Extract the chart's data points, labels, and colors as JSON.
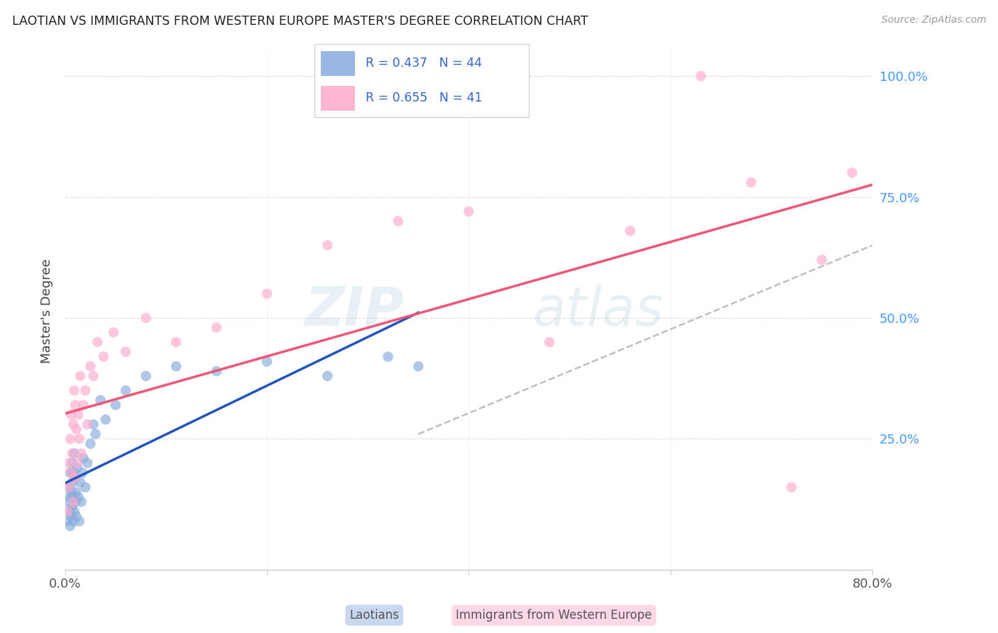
{
  "title": "LAOTIAN VS IMMIGRANTS FROM WESTERN EUROPE MASTER'S DEGREE CORRELATION CHART",
  "source": "Source: ZipAtlas.com",
  "ylabel": "Master's Degree",
  "xlim": [
    0.0,
    0.8
  ],
  "ylim": [
    -0.02,
    1.05
  ],
  "blue_color": "#88AADD",
  "pink_color": "#FFAACC",
  "blue_line_color": "#2255BB",
  "pink_line_color": "#EE5577",
  "blue_tick_color": "#4499FF",
  "legend_r_blue": "0.437",
  "legend_n_blue": "44",
  "legend_r_pink": "0.655",
  "legend_n_pink": "41",
  "label_blue": "Laotians",
  "label_pink": "Immigrants from Western Europe",
  "watermark_text": "ZIPatlas",
  "background_color": "#FFFFFF",
  "grid_color": "#DDDDDD",
  "blue_scatter_x": [
    0.002,
    0.003,
    0.004,
    0.004,
    0.005,
    0.005,
    0.005,
    0.006,
    0.006,
    0.007,
    0.007,
    0.007,
    0.008,
    0.008,
    0.008,
    0.009,
    0.009,
    0.01,
    0.01,
    0.011,
    0.011,
    0.012,
    0.013,
    0.014,
    0.015,
    0.016,
    0.017,
    0.018,
    0.02,
    0.022,
    0.025,
    0.028,
    0.03,
    0.035,
    0.04,
    0.05,
    0.06,
    0.08,
    0.11,
    0.15,
    0.2,
    0.26,
    0.32,
    0.35
  ],
  "blue_scatter_y": [
    0.08,
    0.12,
    0.1,
    0.15,
    0.07,
    0.13,
    0.18,
    0.09,
    0.14,
    0.11,
    0.16,
    0.2,
    0.08,
    0.13,
    0.18,
    0.1,
    0.22,
    0.12,
    0.17,
    0.09,
    0.14,
    0.19,
    0.13,
    0.08,
    0.16,
    0.12,
    0.18,
    0.21,
    0.15,
    0.2,
    0.24,
    0.28,
    0.26,
    0.33,
    0.29,
    0.32,
    0.35,
    0.38,
    0.4,
    0.39,
    0.41,
    0.38,
    0.42,
    0.4
  ],
  "pink_scatter_x": [
    0.002,
    0.003,
    0.004,
    0.005,
    0.006,
    0.006,
    0.007,
    0.008,
    0.008,
    0.009,
    0.01,
    0.01,
    0.011,
    0.012,
    0.013,
    0.014,
    0.015,
    0.016,
    0.018,
    0.02,
    0.022,
    0.025,
    0.028,
    0.032,
    0.038,
    0.048,
    0.06,
    0.08,
    0.11,
    0.15,
    0.2,
    0.26,
    0.33,
    0.4,
    0.48,
    0.56,
    0.63,
    0.68,
    0.72,
    0.75,
    0.78
  ],
  "pink_scatter_y": [
    0.1,
    0.2,
    0.15,
    0.25,
    0.18,
    0.3,
    0.22,
    0.12,
    0.28,
    0.35,
    0.17,
    0.32,
    0.27,
    0.2,
    0.3,
    0.25,
    0.38,
    0.22,
    0.32,
    0.35,
    0.28,
    0.4,
    0.38,
    0.45,
    0.42,
    0.47,
    0.43,
    0.5,
    0.45,
    0.48,
    0.55,
    0.65,
    0.7,
    0.72,
    0.45,
    0.68,
    1.0,
    0.78,
    0.15,
    0.62,
    0.8
  ],
  "dashed_line_x": [
    0.35,
    0.8
  ],
  "dashed_line_y": [
    0.26,
    0.65
  ]
}
